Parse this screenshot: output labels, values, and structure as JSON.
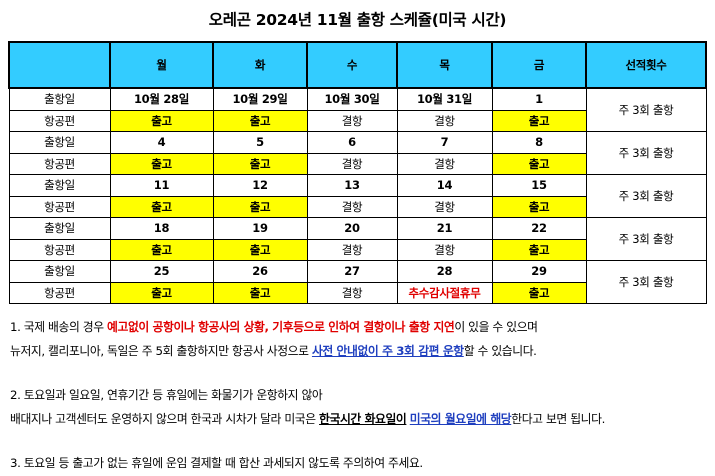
{
  "title": "오레곤 2024년 11월 출항 스케쥴(미국 시간)",
  "table": {
    "headers": [
      "",
      "월",
      "화",
      "수",
      "목",
      "금",
      "선적횟수"
    ],
    "row_labels": {
      "departure": "출항일",
      "flight": "항공편"
    },
    "weeks": [
      {
        "dates": [
          "10월 28일",
          "10월 29일",
          "10월 30일",
          "10월 31일",
          "1"
        ],
        "flights": [
          "출고",
          "출고",
          "결항",
          "결항",
          "출고"
        ],
        "frequency": "주 3회 출항"
      },
      {
        "dates": [
          "4",
          "5",
          "6",
          "7",
          "8"
        ],
        "flights": [
          "출고",
          "출고",
          "결항",
          "결항",
          "출고"
        ],
        "frequency": "주 3회 출항"
      },
      {
        "dates": [
          "11",
          "12",
          "13",
          "14",
          "15"
        ],
        "flights": [
          "출고",
          "출고",
          "결항",
          "결항",
          "출고"
        ],
        "frequency": "주 3회 출항"
      },
      {
        "dates": [
          "18",
          "19",
          "20",
          "21",
          "22"
        ],
        "flights": [
          "출고",
          "출고",
          "결항",
          "결항",
          "출고"
        ],
        "frequency": "주 3회 출항"
      },
      {
        "dates": [
          "25",
          "26",
          "27",
          "28",
          "29"
        ],
        "flights": [
          "출고",
          "출고",
          "결항",
          "추수감사절휴무",
          "출고"
        ],
        "frequency": "주 3회 출항"
      }
    ],
    "colors": {
      "header_bg": "#33ccff",
      "shipping_bg": "#ffff00",
      "holiday_text": "#e00000"
    }
  },
  "notes": {
    "n1": {
      "l1a": "1. 국제 배송의 경우 ",
      "l1b": "예고없이 공항이나 항공사의 상황, 기후등으로 인하여 결항이나 출항 지연",
      "l1c": "이 있을 수 있으며",
      "l2a": "뉴저지, 캘리포니아, 독일은 주 5회 출항하지만 항공사 사정으로 ",
      "l2b": "사전 안내없이 주 3회 감편 운항",
      "l2c": "할 수 있습니다."
    },
    "n2": {
      "l1": "2. 토요일과 일요일, 연휴기간 등 휴일에는 화물기가 운항하지 않아",
      "l2a": "배대지나 고객센터도 운영하지 않으며 한국과 시차가 달라 미국은 ",
      "l2b": "한국시간 화요일이",
      "l2c": " ",
      "l2d": "미국의 월요일에 해당",
      "l2e": "한다고 보면 됩니다."
    },
    "n3": "3. 토요일 등 출고가 없는 휴일에 운임 결제할 때 합산 과세되지 않도록 주의하여 주세요."
  }
}
